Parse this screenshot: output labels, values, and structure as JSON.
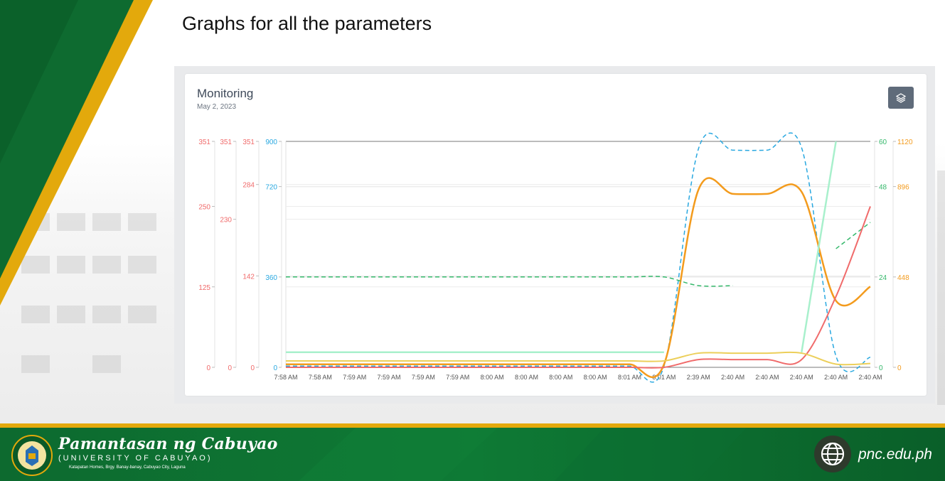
{
  "slide": {
    "title": "Graphs for all the parameters"
  },
  "card": {
    "title": "Monitoring",
    "date": "May 2, 2023"
  },
  "toolbar": {
    "layers_icon": "layers-icon"
  },
  "footer": {
    "university": "Pamantasan ng Cabuyao",
    "university_sub": "(UNIVERSITY OF CABUYAO)",
    "address": "Katapatan Homes, Brgy. Banay-banay, Cabuyao City, Laguna",
    "website": "pnc.edu.ph",
    "globe_icon": "globe-icon",
    "logo_icon": "seal-logo-icon"
  },
  "colors": {
    "green_dark": "#0a5e2a",
    "gold": "#e3a90c",
    "red": "#f06b6b",
    "blue": "#29a8e0",
    "orange": "#f39b1d",
    "yellow": "#eccf5a",
    "mint": "#a8f0cc",
    "green": "#35b86b"
  },
  "chart_data": {
    "type": "line",
    "x": [
      "7:58 AM",
      "7:58 AM",
      "7:59 AM",
      "7:59 AM",
      "7:59 AM",
      "7:59 AM",
      "8:00 AM",
      "8:00 AM",
      "8:00 AM",
      "8:00 AM",
      "8:01 AM",
      "8:01 AM",
      "2:39 AM",
      "2:40 AM",
      "2:40 AM",
      "2:40 AM",
      "2:40 AM",
      "2:40 AM"
    ],
    "y_axes": [
      {
        "id": "a1",
        "color": "#f06b6b",
        "ticks": [
          0,
          125,
          250,
          351
        ],
        "range": [
          0,
          351
        ]
      },
      {
        "id": "a2",
        "color": "#f06b6b",
        "ticks": [
          0,
          230,
          351
        ],
        "range": [
          0,
          351
        ]
      },
      {
        "id": "a3",
        "color": "#f06b6b",
        "ticks": [
          0,
          142,
          284,
          351
        ],
        "range": [
          0,
          351
        ]
      },
      {
        "id": "a4",
        "color": "#29a8e0",
        "ticks": [
          0,
          360,
          720,
          900
        ],
        "range": [
          0,
          900
        ]
      },
      {
        "id": "a5",
        "color": "#35b86b",
        "ticks": [
          0,
          24,
          48,
          60
        ],
        "range": [
          0,
          60
        ],
        "side": "right"
      },
      {
        "id": "a6",
        "color": "#f39b1d",
        "ticks": [
          0,
          448,
          896,
          1120
        ],
        "range": [
          0,
          1120
        ],
        "side": "right"
      }
    ],
    "series": [
      {
        "axis": "a4",
        "color": "#29a8e0",
        "dashed": true,
        "width": 1.5,
        "values": [
          5,
          5,
          5,
          5,
          5,
          5,
          5,
          5,
          5,
          5,
          5,
          5,
          870,
          865,
          865,
          875,
          45,
          40
        ]
      },
      {
        "axis": "a6",
        "color": "#f39b1d",
        "dashed": false,
        "width": 2.5,
        "values": [
          15,
          15,
          15,
          15,
          15,
          15,
          15,
          15,
          15,
          15,
          15,
          15,
          880,
          860,
          860,
          870,
          330,
          400
        ]
      },
      {
        "axis": "a5",
        "color": "#35b86b",
        "dashed": true,
        "width": 1.5,
        "values": [
          24,
          24,
          24,
          24,
          24,
          24,
          24,
          24,
          24,
          24,
          24,
          24,
          21.7,
          21.7,
          null,
          null,
          31.5,
          38.5
        ]
      },
      {
        "axis": "a3",
        "color": "#f06b6b",
        "dashed": false,
        "width": 2,
        "values": [
          0,
          0,
          0,
          0,
          0,
          0,
          0,
          0,
          0,
          0,
          0,
          0,
          12,
          12,
          12,
          12,
          110,
          250
        ]
      },
      {
        "axis": "a1",
        "color": "#eccf5a",
        "dashed": false,
        "width": 2,
        "values": [
          10,
          10,
          10,
          10,
          10,
          10,
          10,
          10,
          10,
          10,
          10,
          10,
          22,
          22,
          22,
          22,
          5,
          6
        ]
      },
      {
        "axis": "a5",
        "color": "#a8f0cc",
        "dashed": false,
        "width": 2.5,
        "values": [
          4,
          4,
          4,
          4,
          4,
          4,
          4,
          4,
          4,
          4,
          4,
          4,
          null,
          null,
          null,
          null,
          null,
          null
        ]
      },
      {
        "axis": "a5",
        "color": "#a8f0cc",
        "dashed": false,
        "width": 2.5,
        "values": [
          null,
          null,
          null,
          null,
          null,
          null,
          null,
          null,
          null,
          null,
          null,
          null,
          null,
          null,
          null,
          4,
          60,
          null
        ]
      }
    ],
    "grid": true,
    "legend": "none"
  }
}
